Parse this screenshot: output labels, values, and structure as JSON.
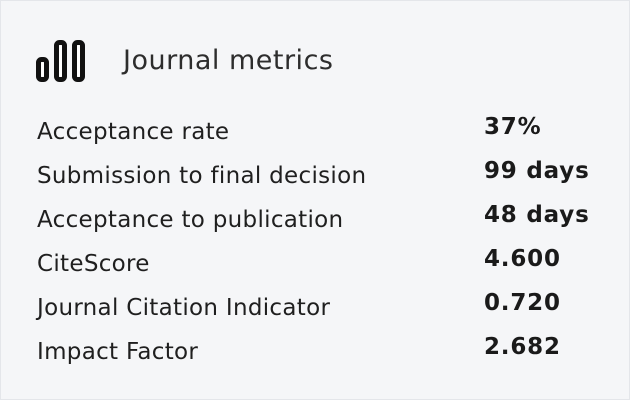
{
  "header": {
    "title": "Journal metrics"
  },
  "metrics": [
    {
      "label": "Acceptance rate",
      "value": "37%"
    },
    {
      "label": "Submission to final decision",
      "value": "99 days"
    },
    {
      "label": "Acceptance to publication",
      "value": "48 days"
    },
    {
      "label": "CiteScore",
      "value": "4.600"
    },
    {
      "label": "Journal Citation Indicator",
      "value": "0.720"
    },
    {
      "label": "Impact Factor",
      "value": "2.682"
    }
  ]
}
